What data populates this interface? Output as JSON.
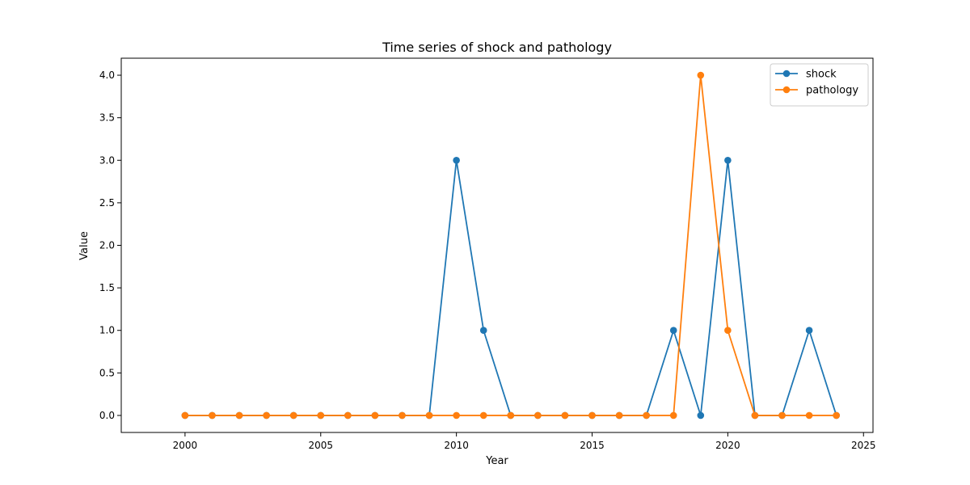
{
  "chart_data": {
    "type": "line",
    "title": "Time series of shock and pathology",
    "xlabel": "Year",
    "ylabel": "Value",
    "xlim": [
      1997.65,
      2025.35
    ],
    "ylim": [
      -0.2,
      4.2
    ],
    "xticks": [
      2000,
      2005,
      2010,
      2015,
      2020,
      2025
    ],
    "xtick_labels": [
      "2000",
      "2005",
      "2010",
      "2015",
      "2020",
      "2025"
    ],
    "yticks": [
      0.0,
      0.5,
      1.0,
      1.5,
      2.0,
      2.5,
      3.0,
      3.5,
      4.0
    ],
    "ytick_labels": [
      "0.0",
      "0.5",
      "1.0",
      "1.5",
      "2.0",
      "2.5",
      "3.0",
      "3.5",
      "4.0"
    ],
    "grid": false,
    "legend_position": "top-right",
    "x": [
      2000,
      2001,
      2002,
      2003,
      2004,
      2005,
      2006,
      2007,
      2008,
      2009,
      2010,
      2011,
      2012,
      2013,
      2014,
      2015,
      2016,
      2017,
      2018,
      2019,
      2020,
      2021,
      2022,
      2023,
      2024
    ],
    "series": [
      {
        "name": "shock",
        "color": "#1f77b4",
        "marker": "circle",
        "values": [
          0,
          0,
          0,
          0,
          0,
          0,
          0,
          0,
          0,
          0,
          3,
          1,
          0,
          0,
          0,
          0,
          0,
          0,
          1,
          0,
          3,
          0,
          0,
          1,
          0
        ]
      },
      {
        "name": "pathology",
        "color": "#ff7f0e",
        "marker": "circle",
        "values": [
          0,
          0,
          0,
          0,
          0,
          0,
          0,
          0,
          0,
          0,
          0,
          0,
          0,
          0,
          0,
          0,
          0,
          0,
          0,
          4,
          1,
          0,
          0,
          0,
          0
        ]
      }
    ]
  }
}
